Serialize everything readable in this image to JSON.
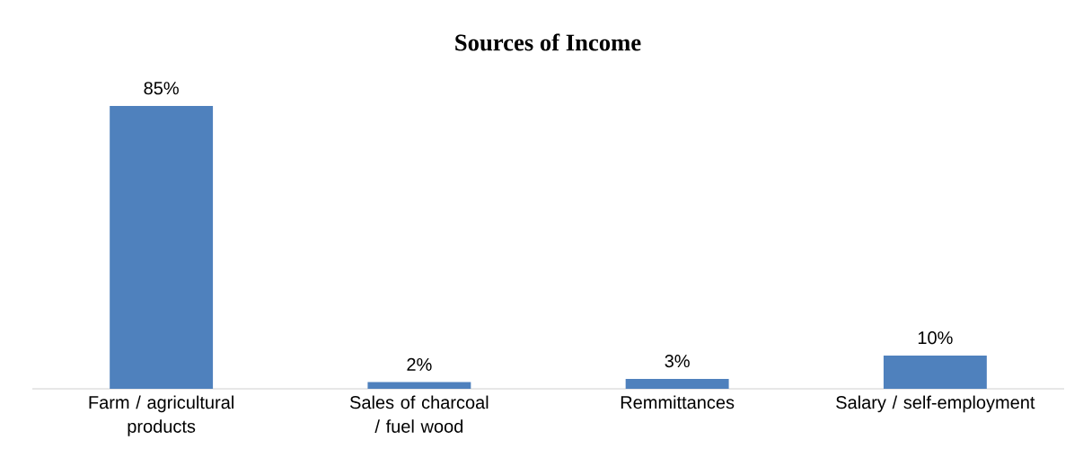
{
  "chart_data": {
    "type": "bar",
    "title": "Sources of Income",
    "categories": [
      "Farm / agricultural products",
      "Sales of charcoal / fuel wood",
      "Remmittances",
      "Salary / self-employment"
    ],
    "values": [
      85,
      2,
      3,
      10
    ],
    "value_labels": [
      "85%",
      "2%",
      "3%",
      "10%"
    ],
    "color": "#4f81bd"
  }
}
